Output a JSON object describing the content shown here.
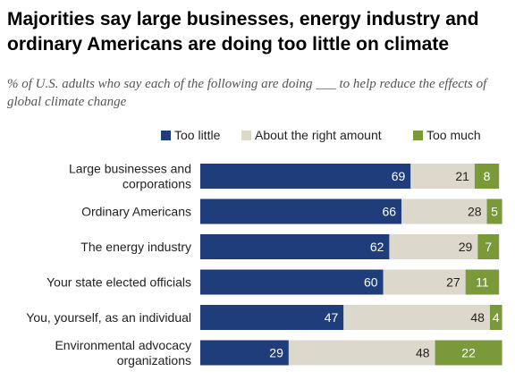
{
  "title": "Majorities say large businesses, energy industry and ordinary Americans are doing too little on climate",
  "subtitle": "% of U.S. adults who say each of the following are doing ___ to help reduce the effects of global climate change",
  "chart_data": {
    "type": "bar",
    "orientation": "horizontal",
    "stacked": true,
    "categories": [
      [
        "Large businesses and",
        "corporations"
      ],
      [
        "Ordinary Americans"
      ],
      [
        "The energy industry"
      ],
      [
        "Your state elected officials"
      ],
      [
        "You, yourself, as an individual"
      ],
      [
        "Environmental advocacy",
        "organizations"
      ]
    ],
    "series": [
      {
        "name": "Too little",
        "color": "#1f3d7a",
        "label_color": "#ffffff",
        "values": [
          69,
          66,
          62,
          60,
          47,
          29
        ]
      },
      {
        "name": "About the right amount",
        "color": "#dcd9cc",
        "label_color": "#222222",
        "values": [
          21,
          28,
          29,
          27,
          48,
          48
        ]
      },
      {
        "name": "Too much",
        "color": "#7a9a3a",
        "label_color": "#ffffff",
        "values": [
          8,
          5,
          7,
          11,
          4,
          22
        ]
      }
    ],
    "legend_position": "top",
    "xlim": [
      0,
      100
    ],
    "grid": false
  }
}
